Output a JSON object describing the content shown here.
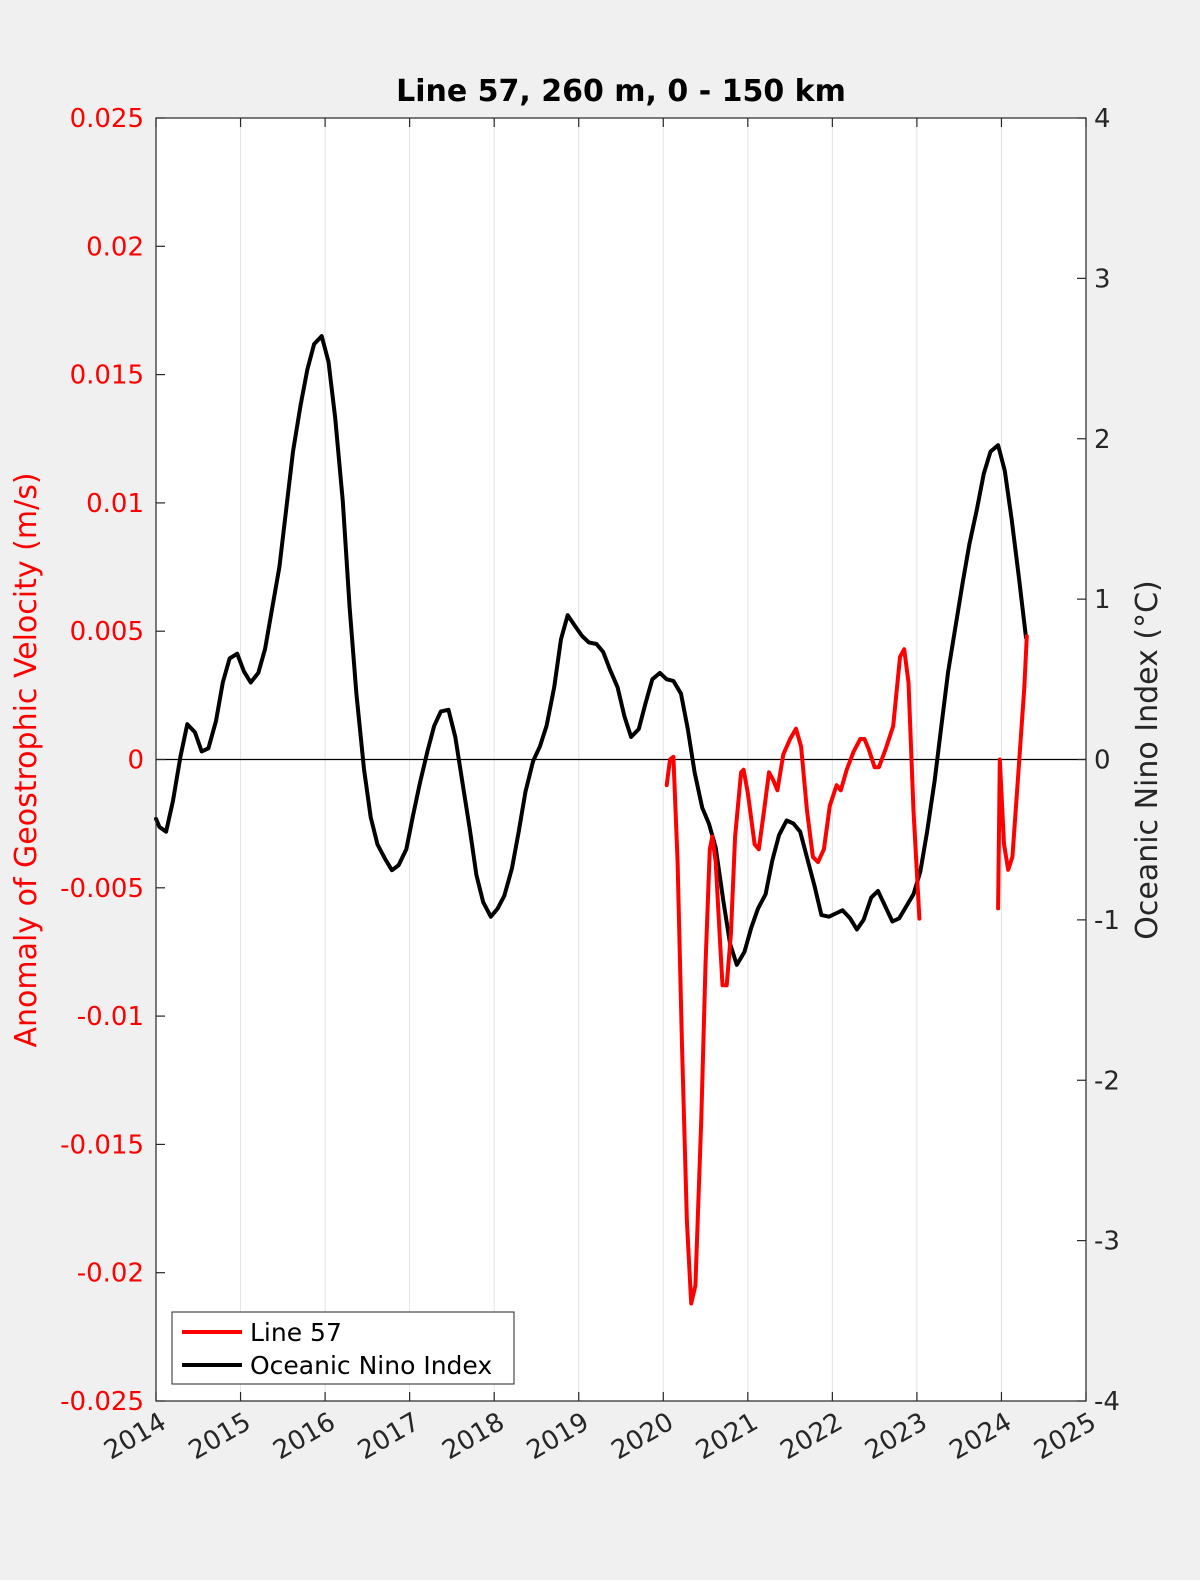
{
  "chart_data": {
    "type": "line",
    "title": "Line 57, 260 m, 0 - 150 km",
    "x_ticks": [
      "2014",
      "2015",
      "2016",
      "2017",
      "2018",
      "2019",
      "2020",
      "2021",
      "2022",
      "2023",
      "2024",
      "2025"
    ],
    "xlim": [
      2014,
      2025
    ],
    "left_axis": {
      "label": "Anomaly of Geostrophic Velocity (m/s)",
      "ylim": [
        -0.025,
        0.025
      ],
      "ticks": [
        "-0.025",
        "-0.02",
        "-0.015",
        "-0.01",
        "-0.005",
        "0",
        "0.005",
        "0.01",
        "0.015",
        "0.02",
        "0.025"
      ],
      "tick_values": [
        -0.025,
        -0.02,
        -0.015,
        -0.01,
        -0.005,
        0,
        0.005,
        0.01,
        0.015,
        0.02,
        0.025
      ],
      "color": "#ff0000"
    },
    "right_axis": {
      "label": "Oceanic Nino Index (°C)",
      "ylim": [
        -4,
        4
      ],
      "ticks": [
        "-4",
        "-3",
        "-2",
        "-1",
        "0",
        "1",
        "2",
        "3",
        "4"
      ],
      "tick_values": [
        -4,
        -3,
        -2,
        -1,
        0,
        1,
        2,
        3,
        4
      ],
      "color": "#262626"
    },
    "grid": "vertical",
    "zero_line": true,
    "legend_location": "bottom-left",
    "series": [
      {
        "name": "Line 57",
        "axis": "left",
        "color": "#ff0000",
        "segments": [
          [
            [
              2020.04,
              -0.001
            ],
            [
              2020.08,
              0.0
            ],
            [
              2020.12,
              0.0001
            ],
            [
              2020.17,
              -0.004
            ],
            [
              2020.22,
              -0.011
            ],
            [
              2020.28,
              -0.018
            ],
            [
              2020.33,
              -0.0212
            ],
            [
              2020.38,
              -0.0205
            ],
            [
              2020.45,
              -0.014
            ],
            [
              2020.5,
              -0.008
            ],
            [
              2020.55,
              -0.0035
            ],
            [
              2020.58,
              -0.003
            ],
            [
              2020.62,
              -0.004
            ],
            [
              2020.67,
              -0.007
            ],
            [
              2020.7,
              -0.0088
            ],
            [
              2020.75,
              -0.0088
            ],
            [
              2020.8,
              -0.0068
            ],
            [
              2020.85,
              -0.003
            ],
            [
              2020.92,
              -0.0005
            ],
            [
              2020.95,
              -0.0004
            ],
            [
              2021.0,
              -0.0013
            ],
            [
              2021.08,
              -0.0033
            ],
            [
              2021.13,
              -0.0035
            ],
            [
              2021.2,
              -0.0018
            ],
            [
              2021.25,
              -0.0005
            ],
            [
              2021.3,
              -0.0008
            ],
            [
              2021.35,
              -0.0012
            ],
            [
              2021.42,
              0.0002
            ],
            [
              2021.5,
              0.0008
            ],
            [
              2021.57,
              0.0012
            ],
            [
              2021.63,
              0.0005
            ],
            [
              2021.7,
              -0.002
            ],
            [
              2021.77,
              -0.0038
            ],
            [
              2021.83,
              -0.004
            ],
            [
              2021.9,
              -0.0035
            ],
            [
              2021.97,
              -0.0018
            ],
            [
              2022.05,
              -0.001
            ],
            [
              2022.1,
              -0.0012
            ],
            [
              2022.17,
              -0.0004
            ],
            [
              2022.25,
              0.0003
            ],
            [
              2022.33,
              0.0008
            ],
            [
              2022.38,
              0.0008
            ],
            [
              2022.43,
              0.0004
            ],
            [
              2022.5,
              -0.0003
            ],
            [
              2022.55,
              -0.0003
            ],
            [
              2022.63,
              0.0004
            ],
            [
              2022.72,
              0.0013
            ],
            [
              2022.8,
              0.004
            ],
            [
              2022.85,
              0.0043
            ],
            [
              2022.9,
              0.003
            ],
            [
              2022.96,
              -0.002
            ],
            [
              2023.03,
              -0.0062
            ]
          ],
          [
            [
              2023.96,
              -0.0058
            ],
            [
              2023.98,
              0.0
            ],
            [
              2024.03,
              -0.0033
            ],
            [
              2024.08,
              -0.0043
            ],
            [
              2024.13,
              -0.0038
            ],
            [
              2024.2,
              -0.0005
            ],
            [
              2024.27,
              0.0028
            ],
            [
              2024.3,
              0.0048
            ]
          ]
        ]
      },
      {
        "name": "Oceanic Nino Index",
        "axis": "right",
        "color": "#000000",
        "segments": [
          [
            [
              2014.0,
              -0.37
            ],
            [
              2014.04,
              -0.42
            ],
            [
              2014.12,
              -0.45
            ],
            [
              2014.2,
              -0.26
            ],
            [
              2014.29,
              0.02
            ],
            [
              2014.37,
              0.22
            ],
            [
              2014.46,
              0.17
            ],
            [
              2014.54,
              0.05
            ],
            [
              2014.62,
              0.07
            ],
            [
              2014.71,
              0.24
            ],
            [
              2014.79,
              0.48
            ],
            [
              2014.87,
              0.63
            ],
            [
              2014.96,
              0.66
            ],
            [
              2015.04,
              0.55
            ],
            [
              2015.12,
              0.48
            ],
            [
              2015.21,
              0.54
            ],
            [
              2015.29,
              0.69
            ],
            [
              2015.37,
              0.93
            ],
            [
              2015.46,
              1.2
            ],
            [
              2015.54,
              1.56
            ],
            [
              2015.62,
              1.92
            ],
            [
              2015.71,
              2.21
            ],
            [
              2015.79,
              2.43
            ],
            [
              2015.87,
              2.59
            ],
            [
              2015.96,
              2.64
            ],
            [
              2016.04,
              2.48
            ],
            [
              2016.12,
              2.13
            ],
            [
              2016.21,
              1.61
            ],
            [
              2016.29,
              0.95
            ],
            [
              2016.37,
              0.41
            ],
            [
              2016.46,
              -0.06
            ],
            [
              2016.54,
              -0.36
            ],
            [
              2016.62,
              -0.53
            ],
            [
              2016.71,
              -0.62
            ],
            [
              2016.79,
              -0.69
            ],
            [
              2016.87,
              -0.66
            ],
            [
              2016.96,
              -0.56
            ],
            [
              2017.04,
              -0.35
            ],
            [
              2017.12,
              -0.15
            ],
            [
              2017.21,
              0.05
            ],
            [
              2017.29,
              0.21
            ],
            [
              2017.37,
              0.3
            ],
            [
              2017.46,
              0.31
            ],
            [
              2017.54,
              0.14
            ],
            [
              2017.62,
              -0.13
            ],
            [
              2017.71,
              -0.43
            ],
            [
              2017.79,
              -0.72
            ],
            [
              2017.87,
              -0.89
            ],
            [
              2017.96,
              -0.98
            ],
            [
              2018.04,
              -0.93
            ],
            [
              2018.12,
              -0.85
            ],
            [
              2018.21,
              -0.68
            ],
            [
              2018.29,
              -0.45
            ],
            [
              2018.37,
              -0.2
            ],
            [
              2018.46,
              -0.01
            ],
            [
              2018.54,
              0.08
            ],
            [
              2018.62,
              0.21
            ],
            [
              2018.71,
              0.45
            ],
            [
              2018.79,
              0.75
            ],
            [
              2018.87,
              0.9
            ],
            [
              2018.96,
              0.83
            ],
            [
              2019.04,
              0.77
            ],
            [
              2019.12,
              0.73
            ],
            [
              2019.21,
              0.72
            ],
            [
              2019.29,
              0.67
            ],
            [
              2019.37,
              0.56
            ],
            [
              2019.46,
              0.45
            ],
            [
              2019.54,
              0.27
            ],
            [
              2019.62,
              0.14
            ],
            [
              2019.71,
              0.19
            ],
            [
              2019.79,
              0.35
            ],
            [
              2019.87,
              0.5
            ],
            [
              2019.96,
              0.54
            ],
            [
              2020.04,
              0.5
            ],
            [
              2020.12,
              0.49
            ],
            [
              2020.21,
              0.41
            ],
            [
              2020.29,
              0.19
            ],
            [
              2020.37,
              -0.08
            ],
            [
              2020.46,
              -0.3
            ],
            [
              2020.54,
              -0.4
            ],
            [
              2020.62,
              -0.55
            ],
            [
              2020.71,
              -0.88
            ],
            [
              2020.79,
              -1.15
            ],
            [
              2020.87,
              -1.28
            ],
            [
              2020.96,
              -1.2
            ],
            [
              2021.04,
              -1.05
            ],
            [
              2021.12,
              -0.93
            ],
            [
              2021.21,
              -0.84
            ],
            [
              2021.29,
              -0.63
            ],
            [
              2021.37,
              -0.47
            ],
            [
              2021.46,
              -0.38
            ],
            [
              2021.54,
              -0.4
            ],
            [
              2021.62,
              -0.45
            ],
            [
              2021.71,
              -0.63
            ],
            [
              2021.79,
              -0.79
            ],
            [
              2021.87,
              -0.97
            ],
            [
              2021.96,
              -0.98
            ],
            [
              2022.04,
              -0.96
            ],
            [
              2022.12,
              -0.94
            ],
            [
              2022.21,
              -0.99
            ],
            [
              2022.29,
              -1.06
            ],
            [
              2022.37,
              -1.0
            ],
            [
              2022.46,
              -0.86
            ],
            [
              2022.54,
              -0.82
            ],
            [
              2022.62,
              -0.91
            ],
            [
              2022.71,
              -1.01
            ],
            [
              2022.79,
              -0.99
            ],
            [
              2022.87,
              -0.92
            ],
            [
              2022.96,
              -0.84
            ],
            [
              2023.04,
              -0.7
            ],
            [
              2023.12,
              -0.45
            ],
            [
              2023.21,
              -0.13
            ],
            [
              2023.29,
              0.21
            ],
            [
              2023.37,
              0.55
            ],
            [
              2023.46,
              0.84
            ],
            [
              2023.54,
              1.1
            ],
            [
              2023.62,
              1.34
            ],
            [
              2023.71,
              1.56
            ],
            [
              2023.79,
              1.78
            ],
            [
              2023.87,
              1.92
            ],
            [
              2023.96,
              1.96
            ],
            [
              2024.04,
              1.8
            ],
            [
              2024.12,
              1.5
            ],
            [
              2024.21,
              1.12
            ],
            [
              2024.29,
              0.76
            ]
          ]
        ]
      }
    ]
  }
}
